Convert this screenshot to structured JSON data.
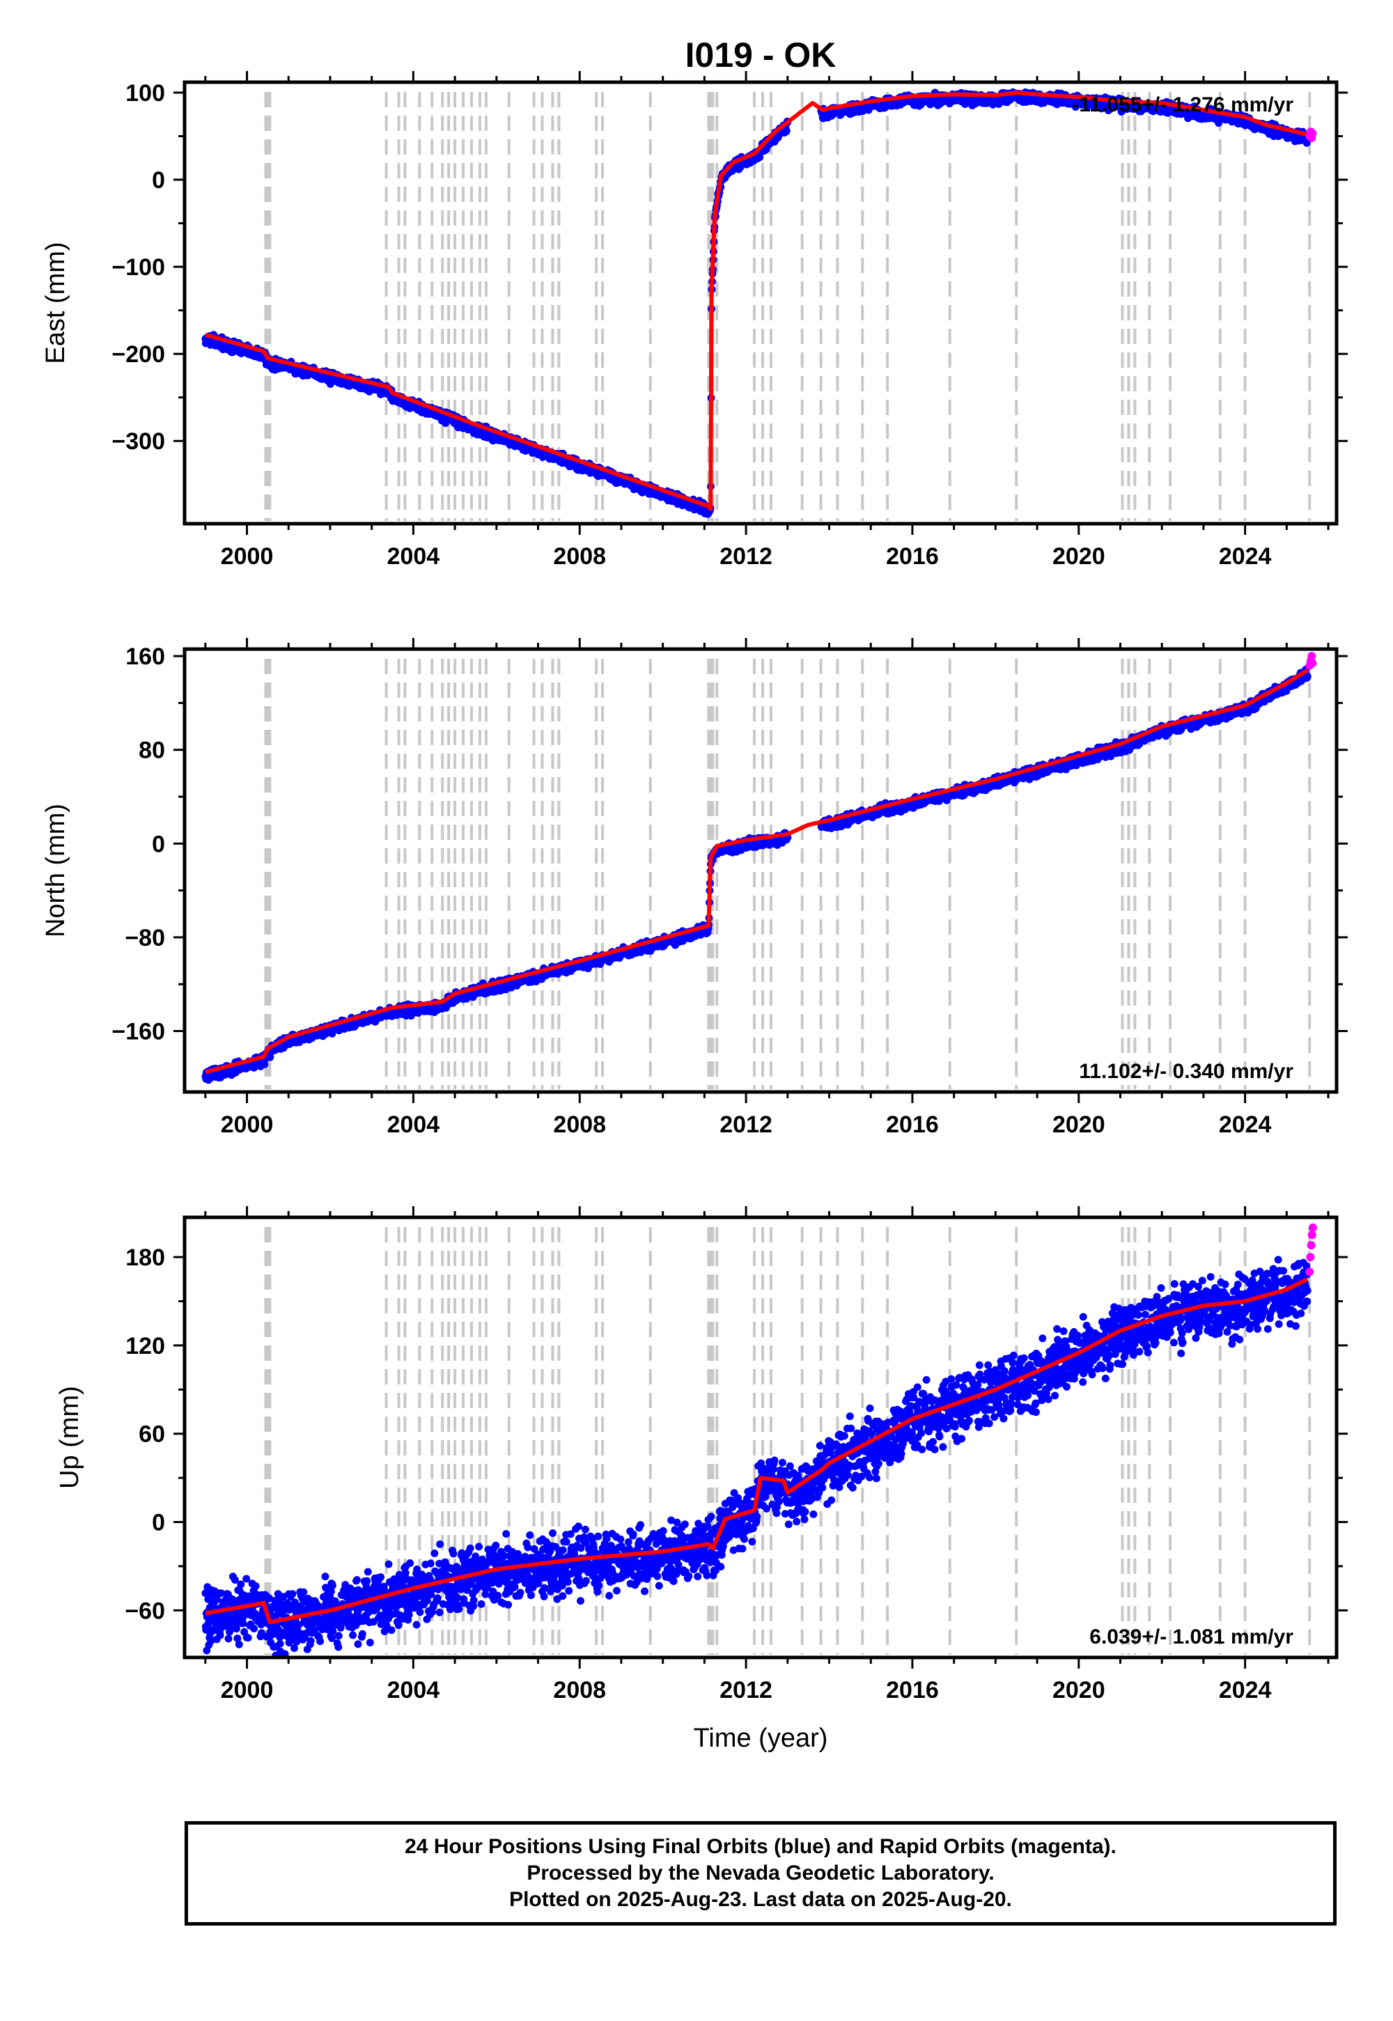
{
  "title": "I019 - OK",
  "colors": {
    "final": "#0000ff",
    "rapid": "#ff00ff",
    "model": "#ff0000",
    "steps": "#c8c8c8"
  },
  "chart_data": [
    {
      "type": "scatter",
      "title": "I019 - OK",
      "ylabel": "East (mm)",
      "xlabel": "",
      "xlim": [
        1998.5,
        2026.2
      ],
      "ylim": [
        -395,
        112
      ],
      "xticks": [
        2000,
        2004,
        2008,
        2012,
        2016,
        2020,
        2024
      ],
      "yticks": [
        -300,
        -200,
        -100,
        0,
        100
      ],
      "grid": false,
      "rate": "-11.055+/- 1.276 mm/yr",
      "rate_position": "top-right",
      "series": [
        {
          "name": "Final Orbits",
          "color": "blue",
          "noise": 4,
          "x": [
            1999.0,
            2000.4,
            2000.5,
            2003.4,
            2003.5,
            2005.6,
            2011.1,
            2011.15,
            2011.17,
            2011.25,
            2011.4,
            2011.7,
            2012.2,
            2012.7,
            2013.6,
            2013.85,
            2014.0,
            2015.0,
            2016.0,
            2017.0,
            2018.0,
            2018.5,
            2019.0,
            2020.0,
            2021.0,
            2022.0,
            2023.0,
            2024.0,
            2024.5,
            2025.5
          ],
          "y": [
            -178,
            -197,
            -205,
            -238,
            -245,
            -283,
            -375,
            -378,
            -130,
            -40,
            5,
            20,
            30,
            55,
            88,
            80,
            82,
            90,
            96,
            98,
            97,
            100,
            98,
            95,
            90,
            88,
            80,
            72,
            63,
            52
          ]
        },
        {
          "name": "Rapid Orbits",
          "color": "magenta",
          "x": [
            2025.55,
            2025.58,
            2025.6,
            2025.62
          ],
          "y": [
            50,
            55,
            48,
            53
          ]
        },
        {
          "name": "Model",
          "color": "red",
          "x": [
            1999.0,
            2000.4,
            2000.5,
            2003.4,
            2003.5,
            2005.6,
            2011.1,
            2011.15,
            2011.17,
            2011.25,
            2011.4,
            2011.7,
            2012.2,
            2012.7,
            2013.6,
            2013.85,
            2014.0,
            2015.0,
            2016.0,
            2017.0,
            2018.0,
            2018.5,
            2019.0,
            2020.0,
            2021.0,
            2022.0,
            2023.0,
            2024.0,
            2024.5,
            2025.5
          ],
          "y": [
            -178,
            -197,
            -205,
            -238,
            -245,
            -283,
            -375,
            -378,
            -130,
            -40,
            5,
            20,
            30,
            55,
            88,
            80,
            82,
            90,
            96,
            98,
            97,
            100,
            98,
            95,
            90,
            88,
            80,
            72,
            63,
            52
          ]
        }
      ]
    },
    {
      "type": "scatter",
      "ylabel": "North (mm)",
      "xlabel": "",
      "xlim": [
        1998.5,
        2026.2
      ],
      "ylim": [
        -212,
        166
      ],
      "xticks": [
        2000,
        2004,
        2008,
        2012,
        2016,
        2020,
        2024
      ],
      "yticks": [
        -160,
        -80,
        0,
        80,
        160
      ],
      "grid": false,
      "rate": "11.102+/- 0.340 mm/yr",
      "rate_position": "bottom-right",
      "series": [
        {
          "name": "Final Orbits",
          "color": "blue",
          "noise": 3,
          "x": [
            1999.0,
            2000.4,
            2000.5,
            2001.0,
            2003.5,
            2004.7,
            2005.0,
            2008.0,
            2011.1,
            2011.15,
            2011.3,
            2012.0,
            2013.0,
            2013.5,
            2014.0,
            2016.0,
            2018.0,
            2020.0,
            2021.0,
            2022.0,
            2024.0,
            2025.0,
            2025.5
          ],
          "y": [
            -195,
            -182,
            -175,
            -165,
            -140,
            -135,
            -128,
            -100,
            -70,
            -12,
            -2,
            3,
            8,
            16,
            20,
            38,
            55,
            75,
            85,
            100,
            118,
            137,
            148
          ]
        },
        {
          "name": "Rapid Orbits",
          "color": "magenta",
          "x": [
            2025.55,
            2025.58,
            2025.6,
            2025.62
          ],
          "y": [
            152,
            156,
            160,
            154
          ]
        },
        {
          "name": "Model",
          "color": "red",
          "x": [
            1999.0,
            2000.4,
            2000.5,
            2001.0,
            2003.5,
            2004.7,
            2005.0,
            2008.0,
            2011.1,
            2011.15,
            2011.3,
            2012.0,
            2013.0,
            2013.5,
            2014.0,
            2016.0,
            2018.0,
            2020.0,
            2021.0,
            2022.0,
            2024.0,
            2025.0,
            2025.5
          ],
          "y": [
            -195,
            -182,
            -175,
            -165,
            -140,
            -135,
            -128,
            -100,
            -70,
            -12,
            -2,
            3,
            8,
            16,
            20,
            38,
            55,
            75,
            85,
            100,
            118,
            137,
            148
          ]
        }
      ]
    },
    {
      "type": "scatter",
      "ylabel": "Up (mm)",
      "xlabel": "Time (year)",
      "xlim": [
        1998.5,
        2026.2
      ],
      "ylim": [
        -92,
        207
      ],
      "xticks": [
        2000,
        2004,
        2008,
        2012,
        2016,
        2020,
        2024
      ],
      "yticks": [
        -60,
        0,
        60,
        120,
        180
      ],
      "grid": false,
      "rate": "6.039+/- 1.081 mm/yr",
      "rate_position": "bottom-right",
      "series": [
        {
          "name": "Final Orbits",
          "color": "blue",
          "noise": 14,
          "x": [
            1999.0,
            2000.4,
            2000.55,
            2002.0,
            2004.0,
            2006.0,
            2008.0,
            2010.0,
            2011.1,
            2011.2,
            2011.5,
            2012.2,
            2012.35,
            2012.9,
            2013.0,
            2013.8,
            2014.0,
            2016.0,
            2018.0,
            2020.0,
            2021.0,
            2022.0,
            2023.0,
            2024.0,
            2025.0,
            2025.5
          ],
          "y": [
            -62,
            -55,
            -68,
            -60,
            -45,
            -32,
            -25,
            -20,
            -15,
            -18,
            2,
            8,
            30,
            28,
            20,
            35,
            40,
            70,
            90,
            115,
            130,
            140,
            147,
            150,
            158,
            165
          ]
        },
        {
          "name": "Rapid Orbits",
          "color": "magenta",
          "x": [
            2025.55,
            2025.57,
            2025.59,
            2025.61,
            2025.63
          ],
          "y": [
            170,
            180,
            188,
            195,
            200
          ]
        },
        {
          "name": "Model",
          "color": "red",
          "x": [
            1999.0,
            2000.4,
            2000.55,
            2002.0,
            2004.0,
            2006.0,
            2008.0,
            2010.0,
            2011.1,
            2011.2,
            2011.5,
            2012.2,
            2012.35,
            2012.9,
            2013.0,
            2013.8,
            2014.0,
            2016.0,
            2018.0,
            2020.0,
            2021.0,
            2022.0,
            2023.0,
            2024.0,
            2025.0,
            2025.5
          ],
          "y": [
            -62,
            -55,
            -68,
            -60,
            -45,
            -32,
            -25,
            -20,
            -15,
            -18,
            2,
            8,
            30,
            28,
            20,
            35,
            40,
            70,
            90,
            115,
            130,
            140,
            147,
            150,
            158,
            165
          ]
        }
      ]
    }
  ],
  "steps": [
    2000.45,
    2000.5,
    2000.55,
    2003.35,
    2003.65,
    2003.8,
    2004.15,
    2004.45,
    2004.7,
    2004.85,
    2005.0,
    2005.2,
    2005.4,
    2005.6,
    2005.75,
    2006.3,
    2006.9,
    2007.1,
    2007.35,
    2007.5,
    2008.4,
    2008.55,
    2009.7,
    2011.1,
    2011.15,
    2011.2,
    2011.3,
    2012.2,
    2012.4,
    2012.6,
    2013.35,
    2013.8,
    2014.2,
    2014.8,
    2015.4,
    2016.9,
    2018.5,
    2021.05,
    2021.2,
    2021.35,
    2021.7,
    2022.2,
    2023.4,
    2024.0,
    2025.55
  ],
  "footer": {
    "line1": "24 Hour Positions Using Final Orbits (blue) and Rapid Orbits (magenta).",
    "line2": "Processed by the Nevada Geodetic Laboratory.",
    "line3": "Plotted on 2025-Aug-23. Last data on 2025-Aug-20."
  }
}
